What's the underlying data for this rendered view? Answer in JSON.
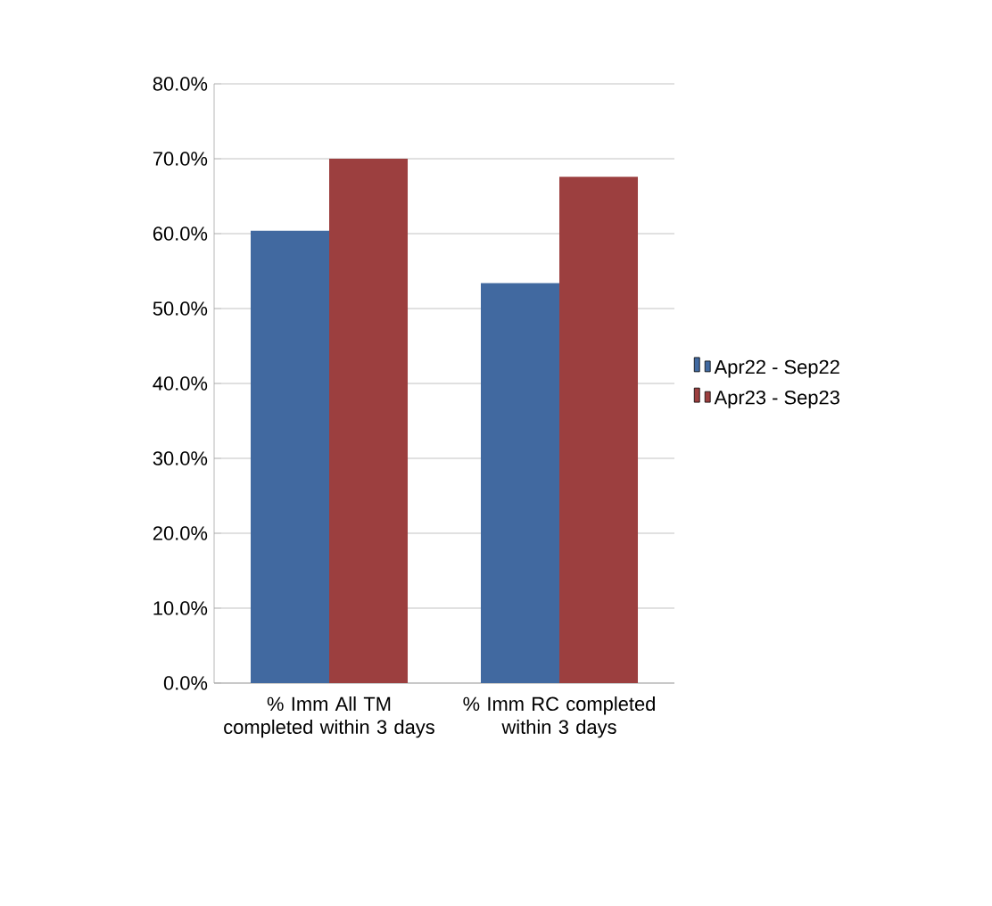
{
  "chart_data": {
    "type": "bar",
    "categories": [
      "% Imm All TM completed within 3 days",
      "% Imm RC completed within 3 days"
    ],
    "series": [
      {
        "name": "Apr22 - Sep22",
        "color": "#4169a0",
        "values": [
          60.4,
          53.4
        ]
      },
      {
        "name": "Apr23 - Sep23",
        "color": "#9c3f3f",
        "values": [
          70.0,
          67.6
        ]
      }
    ],
    "ylim": [
      0,
      80
    ],
    "yticks": [
      {
        "value": 0,
        "label": "0.0%"
      },
      {
        "value": 10,
        "label": "10.0%"
      },
      {
        "value": 20,
        "label": "20.0%"
      },
      {
        "value": 30,
        "label": "30.0%"
      },
      {
        "value": 40,
        "label": "40.0%"
      },
      {
        "value": 50,
        "label": "50.0%"
      },
      {
        "value": 60,
        "label": "60.0%"
      },
      {
        "value": 70,
        "label": "70.0%"
      },
      {
        "value": 80,
        "label": "80.0%"
      }
    ],
    "grid": "y",
    "legend": "right"
  }
}
